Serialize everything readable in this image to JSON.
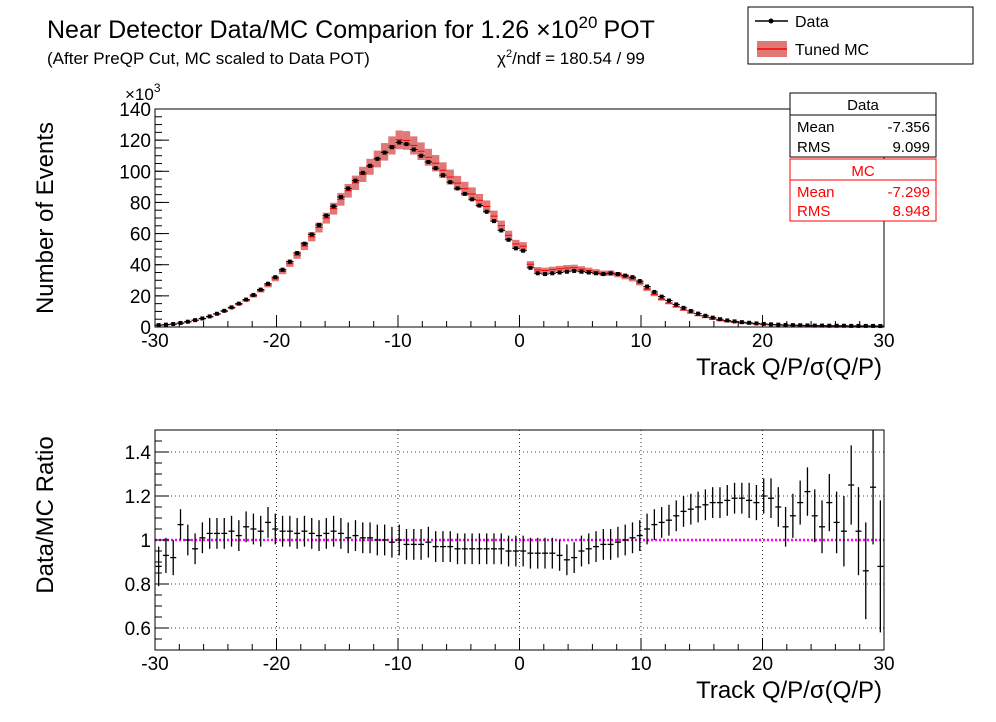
{
  "title": {
    "prefix": "Near Detector Data/MC Comparion for 1.26",
    "times": "×10",
    "exponent": "20",
    "suffix": "POT",
    "subtitle": "(After PreQP Cut, MC scaled to Data POT)",
    "chi2_label": "χ",
    "chi2_sup": "2",
    "chi2_text": "/ndf = 180.54 / 99"
  },
  "legend": {
    "entries": [
      {
        "label": "Data",
        "color": "#000000",
        "style": "marker"
      },
      {
        "label": "Tuned MC",
        "color": "#cc3333",
        "style": "band"
      }
    ]
  },
  "stats": {
    "data": {
      "title": "Data",
      "color": "#000000",
      "rows": [
        [
          "Mean",
          "-7.356"
        ],
        [
          "RMS",
          "9.099"
        ]
      ]
    },
    "mc": {
      "title": "MC",
      "color": "#ff0000",
      "rows": [
        [
          "Mean",
          "-7.299"
        ],
        [
          "RMS",
          "8.948"
        ]
      ]
    }
  },
  "chart_data": [
    {
      "type": "line",
      "ylabel": "Number of Events",
      "xlabel": "Track Q/P/σ(Q/P)",
      "y_multiplier": "×10",
      "y_multiplier_exp": "3",
      "xlim": [
        -30,
        30
      ],
      "ylim": [
        0,
        140
      ],
      "x_ticks": [
        -30,
        -20,
        -10,
        0,
        10,
        20,
        30
      ],
      "y_ticks": [
        0,
        20,
        40,
        60,
        80,
        100,
        120,
        140
      ],
      "grid": false,
      "bin_width": 0.6,
      "x": [
        -29.7,
        -29.1,
        -28.5,
        -27.9,
        -27.3,
        -26.7,
        -26.1,
        -25.5,
        -24.9,
        -24.3,
        -23.7,
        -23.1,
        -22.5,
        -21.9,
        -21.3,
        -20.7,
        -20.1,
        -19.5,
        -18.9,
        -18.3,
        -17.7,
        -17.1,
        -16.5,
        -15.9,
        -15.3,
        -14.7,
        -14.1,
        -13.5,
        -12.9,
        -12.3,
        -11.7,
        -11.1,
        -10.5,
        -9.9,
        -9.3,
        -8.7,
        -8.1,
        -7.5,
        -6.9,
        -6.3,
        -5.7,
        -5.1,
        -4.5,
        -3.9,
        -3.3,
        -2.7,
        -2.1,
        -1.5,
        -0.9,
        -0.3,
        0.3,
        0.9,
        1.5,
        2.1,
        2.7,
        3.3,
        3.9,
        4.5,
        5.1,
        5.7,
        6.3,
        6.9,
        7.5,
        8.1,
        8.7,
        9.3,
        9.9,
        10.5,
        11.1,
        11.7,
        12.3,
        12.9,
        13.5,
        14.1,
        14.7,
        15.3,
        15.9,
        16.5,
        17.1,
        17.7,
        18.3,
        18.9,
        19.5,
        20.1,
        20.7,
        21.3,
        21.9,
        22.5,
        23.1,
        23.7,
        24.3,
        24.9,
        25.5,
        26.1,
        26.7,
        27.3,
        27.9,
        28.5,
        29.1,
        29.7
      ],
      "series": [
        {
          "name": "Data",
          "color": "#000000",
          "values": [
            1.2,
            1.5,
            1.9,
            2.6,
            3.4,
            4.4,
            5.5,
            6.8,
            8.5,
            10.4,
            12.6,
            15.0,
            17.6,
            20.6,
            24.0,
            27.8,
            32.0,
            36.8,
            42.0,
            47.5,
            53.5,
            59.5,
            65.5,
            71.5,
            77.5,
            83.5,
            89.0,
            94.0,
            99.0,
            103.5,
            108.0,
            112.0,
            115.5,
            118.5,
            117.5,
            114.0,
            110.0,
            106.0,
            102.0,
            97.5,
            93.0,
            89.0,
            85.5,
            82.0,
            78.0,
            74.0,
            68.0,
            62.0,
            56.0,
            50.5,
            49.0,
            38.0,
            34.5,
            34.0,
            34.5,
            35.0,
            35.5,
            36.0,
            35.5,
            35.0,
            34.5,
            34.0,
            34.5,
            34.0,
            33.0,
            32.0,
            29.5,
            26.0,
            22.5,
            19.5,
            17.0,
            14.5,
            12.3,
            10.3,
            8.6,
            7.2,
            6.0,
            5.0,
            4.2,
            3.6,
            3.1,
            2.7,
            2.3,
            2.0,
            1.7,
            1.5,
            1.3,
            1.2,
            1.1,
            1.0,
            0.9,
            0.9,
            0.8,
            0.8,
            0.8,
            0.7,
            0.7,
            0.7,
            0.7,
            0.6
          ]
        },
        {
          "name": "Tuned MC",
          "color": "#cc3333",
          "band": 0.05,
          "values": [
            1.2,
            1.5,
            1.9,
            2.5,
            3.3,
            4.3,
            5.4,
            6.6,
            8.3,
            10.1,
            12.3,
            14.6,
            17.1,
            19.9,
            23.3,
            26.8,
            30.9,
            35.7,
            40.6,
            46.1,
            52.0,
            57.9,
            63.9,
            69.9,
            76.0,
            82.0,
            87.5,
            92.6,
            98.0,
            102.9,
            107.9,
            112.5,
            116.6,
            120.2,
            119.8,
            116.6,
            112.9,
            109.0,
            105.2,
            100.7,
            96.3,
            92.4,
            88.8,
            85.4,
            81.4,
            77.4,
            71.2,
            65.1,
            58.9,
            53.3,
            51.9,
            40.3,
            36.7,
            36.3,
            36.9,
            37.4,
            37.9,
            38.1,
            37.2,
            36.3,
            35.4,
            34.5,
            34.6,
            33.6,
            32.2,
            30.8,
            28.1,
            24.3,
            20.8,
            17.8,
            15.3,
            13.0,
            10.9,
            9.0,
            7.4,
            6.2,
            5.1,
            4.2,
            3.5,
            3.1,
            2.7,
            2.3,
            2.0,
            1.7,
            1.5,
            1.3,
            1.1,
            1.0,
            0.95,
            0.86,
            0.78,
            0.78,
            0.7,
            0.7,
            0.7,
            0.6,
            0.6,
            0.6,
            0.6,
            0.5
          ]
        }
      ]
    },
    {
      "type": "scatter",
      "ylabel": "Data/MC Ratio",
      "xlabel": "Track Q/P/σ(Q/P)",
      "xlim": [
        -30,
        30
      ],
      "ylim": [
        0.5,
        1.5
      ],
      "x_ticks": [
        -30,
        -20,
        -10,
        0,
        10,
        20,
        30
      ],
      "y_ticks": [
        0.6,
        0.8,
        1,
        1.2,
        1.4
      ],
      "y_tick_labels": [
        "0.6",
        "0.8",
        "1",
        "1.2",
        "1.4"
      ],
      "grid": true,
      "reference_line": {
        "y": 1,
        "color": "#ff00ff"
      },
      "x": [
        -29.7,
        -29.1,
        -28.5,
        -27.9,
        -27.3,
        -26.7,
        -26.1,
        -25.5,
        -24.9,
        -24.3,
        -23.7,
        -23.1,
        -22.5,
        -21.9,
        -21.3,
        -20.7,
        -20.1,
        -19.5,
        -18.9,
        -18.3,
        -17.7,
        -17.1,
        -16.5,
        -15.9,
        -15.3,
        -14.7,
        -14.1,
        -13.5,
        -12.9,
        -12.3,
        -11.7,
        -11.1,
        -10.5,
        -9.9,
        -9.3,
        -8.7,
        -8.1,
        -7.5,
        -6.9,
        -6.3,
        -5.7,
        -5.1,
        -4.5,
        -3.9,
        -3.3,
        -2.7,
        -2.1,
        -1.5,
        -0.9,
        -0.3,
        0.3,
        0.9,
        1.5,
        2.1,
        2.7,
        3.3,
        3.9,
        4.5,
        5.1,
        5.7,
        6.3,
        6.9,
        7.5,
        8.1,
        8.7,
        9.3,
        9.9,
        10.5,
        11.1,
        11.7,
        12.3,
        12.9,
        13.5,
        14.1,
        14.7,
        15.3,
        15.9,
        16.5,
        17.1,
        17.7,
        18.3,
        18.9,
        19.5,
        20.1,
        20.7,
        21.3,
        21.9,
        22.5,
        23.1,
        23.7,
        24.3,
        24.9,
        25.5,
        26.1,
        26.7,
        27.3,
        27.9,
        28.5,
        29.1,
        29.7
      ],
      "series": [
        {
          "name": "Data/MC",
          "color": "#000000",
          "values": [
            0.88,
            0.93,
            0.92,
            1.07,
            1.0,
            0.96,
            1.01,
            1.03,
            1.03,
            1.03,
            1.04,
            1.02,
            1.06,
            1.05,
            1.04,
            1.08,
            1.05,
            1.04,
            1.04,
            1.03,
            1.04,
            1.03,
            1.02,
            1.03,
            1.04,
            1.03,
            1.01,
            1.02,
            1.01,
            1.01,
            1.0,
            1.0,
            0.99,
            1.0,
            0.98,
            0.98,
            0.98,
            0.99,
            0.97,
            0.97,
            0.97,
            0.96,
            0.96,
            0.96,
            0.96,
            0.96,
            0.96,
            0.96,
            0.95,
            0.95,
            0.95,
            0.94,
            0.94,
            0.94,
            0.94,
            0.93,
            0.91,
            0.92,
            0.95,
            0.96,
            0.97,
            0.98,
            0.98,
            0.99,
            1.0,
            1.01,
            1.02,
            1.05,
            1.07,
            1.08,
            1.09,
            1.11,
            1.13,
            1.14,
            1.15,
            1.16,
            1.17,
            1.17,
            1.18,
            1.19,
            1.19,
            1.18,
            1.17,
            1.2,
            1.19,
            1.15,
            1.06,
            1.11,
            1.17,
            1.22,
            1.11,
            1.06,
            1.17,
            1.08,
            1.04,
            1.25,
            1.04,
            0.86,
            1.24,
            0.88
          ],
          "errors": [
            0.09,
            0.08,
            0.08,
            0.07,
            0.07,
            0.07,
            0.07,
            0.07,
            0.07,
            0.07,
            0.07,
            0.07,
            0.07,
            0.07,
            0.07,
            0.07,
            0.07,
            0.07,
            0.07,
            0.07,
            0.07,
            0.07,
            0.07,
            0.07,
            0.07,
            0.07,
            0.07,
            0.07,
            0.07,
            0.07,
            0.07,
            0.07,
            0.07,
            0.07,
            0.07,
            0.07,
            0.07,
            0.07,
            0.07,
            0.07,
            0.07,
            0.07,
            0.07,
            0.07,
            0.07,
            0.07,
            0.07,
            0.07,
            0.07,
            0.07,
            0.07,
            0.07,
            0.07,
            0.07,
            0.07,
            0.07,
            0.07,
            0.07,
            0.07,
            0.07,
            0.07,
            0.07,
            0.07,
            0.07,
            0.07,
            0.07,
            0.07,
            0.07,
            0.07,
            0.07,
            0.07,
            0.07,
            0.07,
            0.07,
            0.07,
            0.07,
            0.07,
            0.07,
            0.07,
            0.07,
            0.07,
            0.08,
            0.08,
            0.08,
            0.09,
            0.09,
            0.09,
            0.1,
            0.1,
            0.11,
            0.12,
            0.12,
            0.13,
            0.14,
            0.16,
            0.18,
            0.2,
            0.22,
            0.26,
            0.3
          ]
        }
      ]
    }
  ]
}
